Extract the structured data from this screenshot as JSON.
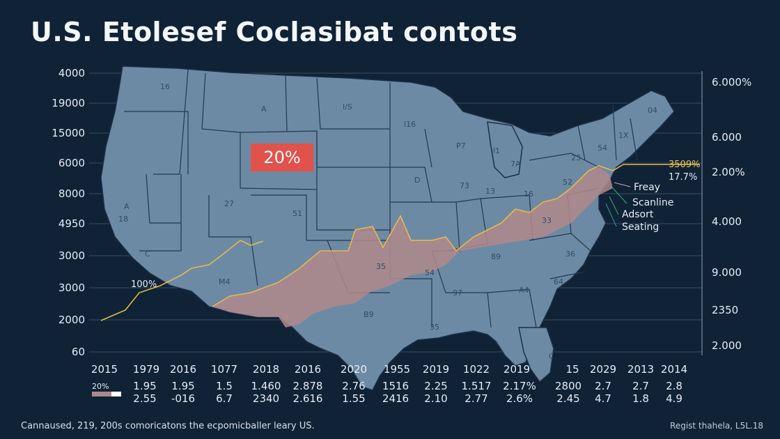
{
  "title": "U.S. Etolesef Coclasibat contots",
  "badge": "20%",
  "left_axis_labels": [
    "4000",
    "19000",
    "15000",
    "6000",
    "8000",
    "4950",
    "3000",
    "3000",
    "2000",
    "60"
  ],
  "right_axis_labels": [
    "6.000%",
    "6.000",
    "2.00%",
    "4.000",
    "9.000",
    "2350",
    "2.000"
  ],
  "x_labels": [
    "2015",
    "1979",
    "2016",
    "1077",
    "2018",
    "2016",
    "2020",
    "1955",
    "2019",
    "1022",
    "2019",
    "15",
    "2029",
    "2013",
    "2014"
  ],
  "row1": [
    "1.95",
    "1.95",
    "1.5",
    "1.460",
    "2.878",
    "2.76",
    "1516",
    "2.25",
    "1.517",
    "2.17%",
    "2800",
    "2.7",
    "2.7",
    "2.8"
  ],
  "row2": [
    "2.55",
    "-016",
    "6.7",
    "2340",
    "2.616",
    "1.55",
    "2416",
    "2.10",
    "2.77",
    "2.6%",
    "2.45",
    "4.7",
    "1.8",
    "4.9"
  ],
  "legend_swatch_label": "20%",
  "annotations": {
    "left_pct": "100%",
    "right_pct": "3509%",
    "right_pct2": "17.7%"
  },
  "legend": [
    {
      "label": "Freay",
      "color": "#d9a0a6"
    },
    {
      "label": "Scanline",
      "color": "#3fae6a"
    },
    {
      "label": "Adsort",
      "color": "#3fae6a"
    },
    {
      "label": "Seating",
      "color": "#2f9c8c"
    }
  ],
  "state_marks": [
    "16",
    "A",
    "l/S",
    "l16",
    "P7",
    "l1",
    "73",
    "04",
    "27",
    "51",
    "D",
    "23",
    "C",
    "13",
    "16",
    "M4",
    "52",
    "33",
    "35",
    "54",
    "97",
    "A4",
    "64",
    "89",
    "36",
    "B9",
    "35",
    "A",
    "C",
    "54",
    "7A",
    "1X",
    "18"
  ],
  "footer_left": "Cannaused, 219, 200s comoricatons the ecpomicballer leary US.",
  "footer_right": "Regist thahela, L5L.18",
  "chart_data": {
    "type": "line",
    "title": "U.S. Etolesef Coclasibat contots",
    "x": [
      "2015",
      "1979",
      "2016",
      "1077",
      "2018",
      "2016",
      "2020",
      "1955",
      "2019",
      "1022",
      "2019",
      "15",
      "2029",
      "2013",
      "2014"
    ],
    "series": [
      {
        "values": [
          2000,
          2500,
          3100,
          3600,
          4950,
          3500,
          4600,
          6000,
          3900,
          4400,
          4700,
          4950,
          5200,
          6000,
          6000
        ]
      }
    ],
    "left_axis": [
      "4000",
      "19000",
      "15000",
      "6000",
      "8000",
      "4950",
      "3000",
      "3000",
      "2000",
      "60"
    ],
    "right_axis": [
      "6.000%",
      "6.000",
      "2.00%",
      "4.000",
      "9.000",
      "2350",
      "2.000"
    ],
    "grid": true
  }
}
